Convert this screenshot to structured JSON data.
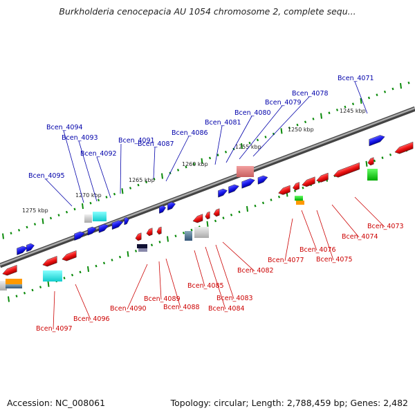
{
  "title": "Burkholderia cenocepacia AU 1054 chromosome 2, complete sequ...",
  "footer": {
    "accession": "Accession: NC_008061",
    "topology": "Topology: circular; Length: 2,788,459 bp; Genes: 2,482"
  },
  "colors": {
    "forward_strand": "#1a1aee",
    "reverse_strand": "#ee1111",
    "backbone": "#777777",
    "tick": "#0a8a0a",
    "forward_label": "#0000aa",
    "reverse_label": "#cc0000"
  },
  "kbp_labels": [
    "1245 kbp",
    "1250 kbp",
    "1255 kbp",
    "1260 kbp",
    "1265 kbp",
    "1270 kbp",
    "1275 kbp"
  ],
  "forward_gene_labels": [
    "Bcen_4071",
    "Bcen_4078",
    "Bcen_4079",
    "Bcen_4080",
    "Bcen_4081",
    "Bcen_4086",
    "Bcen_4087",
    "Bcen_4091",
    "Bcen_4092",
    "Bcen_4093",
    "Bcen_4094",
    "Bcen_4095"
  ],
  "reverse_gene_labels": [
    "Bcen_4073",
    "Bcen_4074",
    "Bcen_4075",
    "Bcen_4076",
    "Bcen_4077",
    "Bcen_4082",
    "Bcen_4083",
    "Bcen_4084",
    "Bcen_4085",
    "Bcen_4088",
    "Bcen_4089",
    "Bcen_4090",
    "Bcen_4096",
    "Bcen_4097"
  ]
}
